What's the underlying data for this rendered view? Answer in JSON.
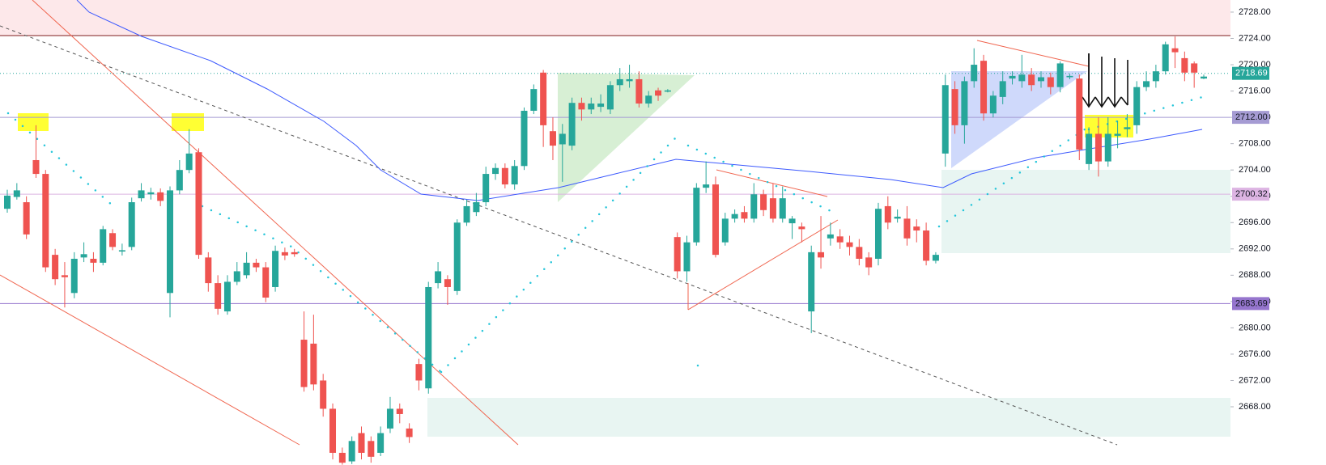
{
  "chart_data": {
    "type": "candlestick",
    "up_color": "#26a69a",
    "down_color": "#ef5350",
    "ylim": [
      2659.15,
      2729.84
    ],
    "yticks": [
      {
        "value": 2668,
        "label": "2668.00"
      },
      {
        "value": 2672,
        "label": "2672.00"
      },
      {
        "value": 2676,
        "label": "2676.00"
      },
      {
        "value": 2680,
        "label": "2680.00"
      },
      {
        "value": 2684,
        "label": "2684.00"
      },
      {
        "value": 2688,
        "label": "2688.00"
      },
      {
        "value": 2692,
        "label": "2692.00"
      },
      {
        "value": 2696,
        "label": "2696.00"
      },
      {
        "value": 2700,
        "label": "2700.00"
      },
      {
        "value": 2704,
        "label": "2704.00"
      },
      {
        "value": 2708,
        "label": "2708.00"
      },
      {
        "value": 2712,
        "label": "2712.00"
      },
      {
        "value": 2716,
        "label": "2716.00"
      },
      {
        "value": 2720,
        "label": "2720.00"
      },
      {
        "value": 2724,
        "label": "2724.00"
      },
      {
        "value": 2728,
        "label": "2728.00"
      }
    ],
    "price_lines": [
      {
        "value": 2718.69,
        "label": "2718.69",
        "color": "#26a69a"
      },
      {
        "value": 2712.0,
        "label": "2712.00",
        "color": "#a59bd3"
      },
      {
        "value": 2700.32,
        "label": "2700.32",
        "color": "#dcb4e2"
      },
      {
        "value": 2683.69,
        "label": "2683.69",
        "color": "#9575cd"
      }
    ],
    "open": [
      2698.1,
      2699.9,
      2699.1,
      2705.5,
      2703.4,
      2691.1,
      2688.0,
      2685.3,
      2690.7,
      2690.5,
      2689.9,
      2694.4,
      2691.6,
      2692.3,
      2699.7,
      2700.3,
      2700.6,
      2685.3,
      2700.9,
      2704.0,
      2706.7,
      2690.7,
      2686.8,
      2682.5,
      2687.0,
      2688.0,
      2689.9,
      2689.2,
      2686.2,
      2691.5,
      2691.5,
      2678.2,
      2677.6,
      2672.0,
      2667.7,
      2661.0,
      2659.7,
      2664.0,
      2662.8,
      2661.0,
      2664.7,
      2667.7,
      2664.7,
      2674.5,
      2670.8,
      2686.8,
      2687.4,
      2685.6,
      2696.0,
      2697.6,
      2699.1,
      2703.4,
      2704.3,
      2701.8,
      2704.6,
      2713.0,
      2718.8,
      2709.9,
      2707.9,
      2707.7,
      2714.2,
      2713.2,
      2713.6,
      2713.2,
      2716.9,
      2717.5,
      2717.8,
      2714.1,
      2716.1,
      2715.9,
      2693.8,
      2688.6,
      2693.0,
      2701.3,
      2701.8,
      2693.0,
      2696.6,
      2697.6,
      2696.6,
      2700.3,
      2699.7,
      2696.6,
      2695.9,
      2695.4,
      2682.5,
      2691.5,
      2693.6,
      2693.9,
      2693.0,
      2692.3,
      2690.7,
      2690.5,
      2698.5,
      2696.6,
      2696.6,
      2695.4,
      2694.8,
      2690.2,
      2706.5,
      2716.3,
      2710.8,
      2717.5,
      2720.6,
      2712.6,
      2715.1,
      2717.9,
      2717.5,
      2718.5,
      2717.5,
      2718.1,
      2716.6,
      2718.1,
      2717.9,
      2704.9,
      2709.5,
      2705.3,
      2709.2,
      2710.2,
      2710.8,
      2716.6,
      2717.5,
      2719.0,
      2722.5,
      2721.0,
      2720.2,
      2717.9
    ],
    "high": [
      2701,
      2702,
      2700,
      2710.8,
      2704,
      2692,
      2690,
      2691.5,
      2693,
      2691.5,
      2695.5,
      2695,
      2692.8,
      2699.8,
      2702,
      2701.3,
      2701.2,
      2701.5,
      2705.5,
      2710.2,
      2707.3,
      2691.5,
      2688,
      2688,
      2690,
      2691.5,
      2690.5,
      2690,
      2692.5,
      2692.2,
      2692,
      2682.5,
      2682,
      2673,
      2668.5,
      2661.8,
      2663.5,
      2665,
      2663.5,
      2665,
      2669.5,
      2668.5,
      2665.5,
      2675.3,
      2687,
      2690,
      2688,
      2696.5,
      2699.5,
      2700.5,
      2704.5,
      2705,
      2705,
      2705.5,
      2713.5,
      2717,
      2719.2,
      2712,
      2711,
      2715,
      2715,
      2715,
      2715.5,
      2717.5,
      2719.5,
      2720,
      2719,
      2716,
      2716.5,
      2716.3,
      2694.5,
      2694,
      2702,
      2705.3,
      2703,
      2697.5,
      2698,
      2698.5,
      2702,
      2701,
      2702,
      2701.5,
      2697,
      2696,
      2692.5,
      2697,
      2696,
      2695,
      2694,
      2693.5,
      2691.5,
      2699,
      2700,
      2698,
      2698.5,
      2696.5,
      2696,
      2691.5,
      2718.5,
      2717.5,
      2718.2,
      2722.5,
      2721.5,
      2716,
      2719,
      2719,
      2721.5,
      2719.5,
      2719,
      2718.8,
      2720.5,
      2718.6,
      2718.5,
      2710.5,
      2712,
      2712,
      2711.5,
      2712.5,
      2717.5,
      2719,
      2720,
      2723.5,
      2724.3,
      2722,
      2720.5,
      2718.5
    ],
    "low": [
      2697.5,
      2699.5,
      2693.5,
      2702.8,
      2688.5,
      2686.5,
      2683.1,
      2684.5,
      2690,
      2688.5,
      2689.5,
      2691.8,
      2691,
      2691.8,
      2699.2,
      2699.5,
      2698.5,
      2681.6,
      2700.3,
      2703.5,
      2690.5,
      2685.5,
      2682,
      2682,
      2686.5,
      2687.5,
      2688.5,
      2683.9,
      2685.5,
      2690.3,
      2690.8,
      2670.3,
      2670.5,
      2666.5,
      2660,
      2659.2,
      2659.3,
      2660,
      2659.5,
      2660.5,
      2664,
      2665.5,
      2662.5,
      2670.5,
      2670,
      2686,
      2683.5,
      2685,
      2695.5,
      2697,
      2698.5,
      2702.5,
      2701.2,
      2701,
      2704,
      2712.5,
      2707.5,
      2705.5,
      2702.2,
      2707,
      2711.5,
      2712.5,
      2712.8,
      2712.5,
      2716,
      2716.5,
      2713.5,
      2713.5,
      2714.5,
      2715.8,
      2687.5,
      2687,
      2692.5,
      2700.5,
      2690.7,
      2692.5,
      2696,
      2696,
      2696,
      2697,
      2696,
      2696,
      2693.5,
      2693,
      2679.2,
      2689,
      2692.5,
      2692,
      2691,
      2689.5,
      2688,
      2689.5,
      2695,
      2696,
      2692.5,
      2693,
      2689.5,
      2689.8,
      2704.5,
      2709.5,
      2708,
      2716.5,
      2711.5,
      2712,
      2714,
      2717,
      2716.5,
      2716,
      2716.5,
      2715.5,
      2715.8,
      2717.8,
      2705.5,
      2704,
      2703,
      2704.5,
      2707.3,
      2709,
      2709.5,
      2716,
      2716.5,
      2718.5,
      2719.5,
      2717.5,
      2716.5,
      2717.8
    ],
    "close": [
      2700.1,
      2700.9,
      2694.2,
      2703.4,
      2689.2,
      2687.4,
      2687.7,
      2690.5,
      2691.2,
      2689.9,
      2695.0,
      2692.3,
      2691.8,
      2699.1,
      2700.9,
      2700.6,
      2699.3,
      2700.9,
      2704.0,
      2706.5,
      2691.1,
      2686.8,
      2682.9,
      2687.0,
      2688.6,
      2689.9,
      2689.2,
      2684.6,
      2691.7,
      2691.0,
      2691.2,
      2671.0,
      2671.4,
      2667.7,
      2661.0,
      2659.5,
      2662.8,
      2661.0,
      2660.4,
      2664.0,
      2667.7,
      2666.9,
      2663.4,
      2672.0,
      2686.2,
      2688.6,
      2686.2,
      2696.0,
      2698.5,
      2699.1,
      2703.4,
      2704.3,
      2701.8,
      2704.6,
      2713.0,
      2716.3,
      2710.8,
      2707.7,
      2709.5,
      2714.2,
      2713.2,
      2714.1,
      2714.1,
      2716.9,
      2717.8,
      2717.8,
      2714.1,
      2715.3,
      2715.3,
      2716.1,
      2688.6,
      2693.0,
      2701.3,
      2701.8,
      2691.1,
      2696.6,
      2697.3,
      2696.6,
      2700.3,
      2697.9,
      2696.6,
      2699.7,
      2696.6,
      2695.0,
      2691.5,
      2690.7,
      2694.2,
      2693.0,
      2692.3,
      2690.5,
      2689.2,
      2698.1,
      2696.0,
      2696.9,
      2693.6,
      2694.8,
      2690.2,
      2691.1,
      2716.9,
      2710.8,
      2717.5,
      2720.0,
      2712.6,
      2715.3,
      2717.5,
      2718.3,
      2718.5,
      2716.9,
      2718.1,
      2716.6,
      2720.2,
      2718.3,
      2707.1,
      2709.5,
      2705.3,
      2709.5,
      2709.5,
      2710.5,
      2716.6,
      2717.5,
      2719.0,
      2723.1,
      2721.9,
      2718.8,
      2718.8,
      2718.2
    ]
  }
}
